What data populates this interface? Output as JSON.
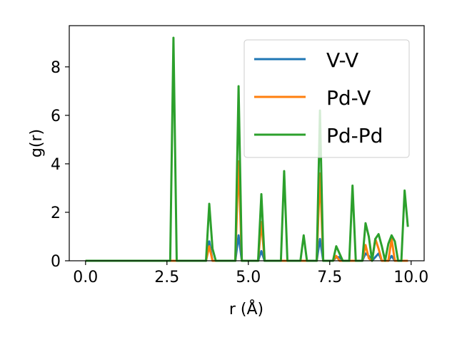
{
  "chart_data": {
    "type": "line",
    "xlabel": "r (Å)",
    "ylabel": "g(r)",
    "xlim": [
      -0.5,
      10.4
    ],
    "ylim": [
      0,
      9.7
    ],
    "xticks": [
      0.0,
      2.5,
      5.0,
      7.5,
      10.0
    ],
    "xtick_labels": [
      "0.0",
      "2.5",
      "5.0",
      "7.5",
      "10.0"
    ],
    "yticks": [
      0,
      2,
      4,
      6,
      8
    ],
    "ytick_labels": [
      "0",
      "2",
      "4",
      "6",
      "8"
    ],
    "grid": false,
    "legend_position": "top-right",
    "series": [
      {
        "name": "V-V",
        "color": "#1f77b4",
        "points": [
          [
            0,
            0
          ],
          [
            2.6,
            0
          ],
          [
            2.7,
            0
          ],
          [
            2.8,
            0
          ],
          [
            3.7,
            0
          ],
          [
            3.8,
            0.8
          ],
          [
            3.9,
            0
          ],
          [
            4.6,
            0
          ],
          [
            4.7,
            1.05
          ],
          [
            4.8,
            0
          ],
          [
            5.3,
            0
          ],
          [
            5.4,
            0.4
          ],
          [
            5.5,
            0
          ],
          [
            7.1,
            0
          ],
          [
            7.2,
            0.9
          ],
          [
            7.3,
            0
          ],
          [
            7.6,
            0
          ],
          [
            7.7,
            0.15
          ],
          [
            7.8,
            0.15
          ],
          [
            7.9,
            0
          ],
          [
            8.5,
            0
          ],
          [
            8.6,
            0.3
          ],
          [
            8.7,
            0.2
          ],
          [
            8.8,
            0
          ],
          [
            9.0,
            0.3
          ],
          [
            9.1,
            0
          ],
          [
            9.3,
            0
          ],
          [
            9.4,
            0.2
          ],
          [
            9.5,
            0
          ],
          [
            9.9,
            0
          ]
        ]
      },
      {
        "name": "Pd-V",
        "color": "#ff7f0e",
        "points": [
          [
            0,
            0
          ],
          [
            2.6,
            0
          ],
          [
            2.7,
            0
          ],
          [
            2.8,
            0
          ],
          [
            3.7,
            0
          ],
          [
            3.8,
            0.6
          ],
          [
            3.9,
            0
          ],
          [
            4.6,
            0
          ],
          [
            4.7,
            4.1
          ],
          [
            4.8,
            0
          ],
          [
            5.3,
            0
          ],
          [
            5.4,
            1.6
          ],
          [
            5.5,
            0
          ],
          [
            7.1,
            0
          ],
          [
            7.2,
            3.6
          ],
          [
            7.3,
            0
          ],
          [
            7.6,
            0
          ],
          [
            7.7,
            0.2
          ],
          [
            7.8,
            0
          ],
          [
            8.5,
            0
          ],
          [
            8.6,
            0.65
          ],
          [
            8.7,
            0.1
          ],
          [
            8.8,
            0
          ],
          [
            8.9,
            0.9
          ],
          [
            9.0,
            0.5
          ],
          [
            9.1,
            0
          ],
          [
            9.3,
            0
          ],
          [
            9.4,
            0.9
          ],
          [
            9.5,
            0
          ],
          [
            9.9,
            0
          ]
        ]
      },
      {
        "name": "Pd-Pd",
        "color": "#2ca02c",
        "points": [
          [
            0,
            0
          ],
          [
            2.6,
            0
          ],
          [
            2.7,
            9.2
          ],
          [
            2.8,
            0
          ],
          [
            3.7,
            0
          ],
          [
            3.8,
            2.35
          ],
          [
            3.9,
            0.5
          ],
          [
            4.0,
            0
          ],
          [
            4.6,
            0
          ],
          [
            4.7,
            7.2
          ],
          [
            4.8,
            0
          ],
          [
            5.3,
            0
          ],
          [
            5.4,
            2.75
          ],
          [
            5.5,
            0
          ],
          [
            6.0,
            0
          ],
          [
            6.1,
            3.7
          ],
          [
            6.2,
            0
          ],
          [
            6.6,
            0
          ],
          [
            6.7,
            1.05
          ],
          [
            6.8,
            0
          ],
          [
            7.1,
            0
          ],
          [
            7.2,
            6.2
          ],
          [
            7.3,
            0
          ],
          [
            7.6,
            0
          ],
          [
            7.7,
            0.6
          ],
          [
            7.8,
            0.3
          ],
          [
            7.9,
            0
          ],
          [
            8.1,
            0
          ],
          [
            8.2,
            3.1
          ],
          [
            8.3,
            0
          ],
          [
            8.5,
            0
          ],
          [
            8.6,
            1.55
          ],
          [
            8.7,
            1.0
          ],
          [
            8.8,
            0
          ],
          [
            8.9,
            0.9
          ],
          [
            9.0,
            1.1
          ],
          [
            9.1,
            0.6
          ],
          [
            9.2,
            0
          ],
          [
            9.3,
            0.7
          ],
          [
            9.4,
            1.05
          ],
          [
            9.5,
            0.8
          ],
          [
            9.6,
            0
          ],
          [
            9.7,
            0
          ],
          [
            9.8,
            2.9
          ],
          [
            9.9,
            1.4
          ]
        ]
      }
    ]
  }
}
